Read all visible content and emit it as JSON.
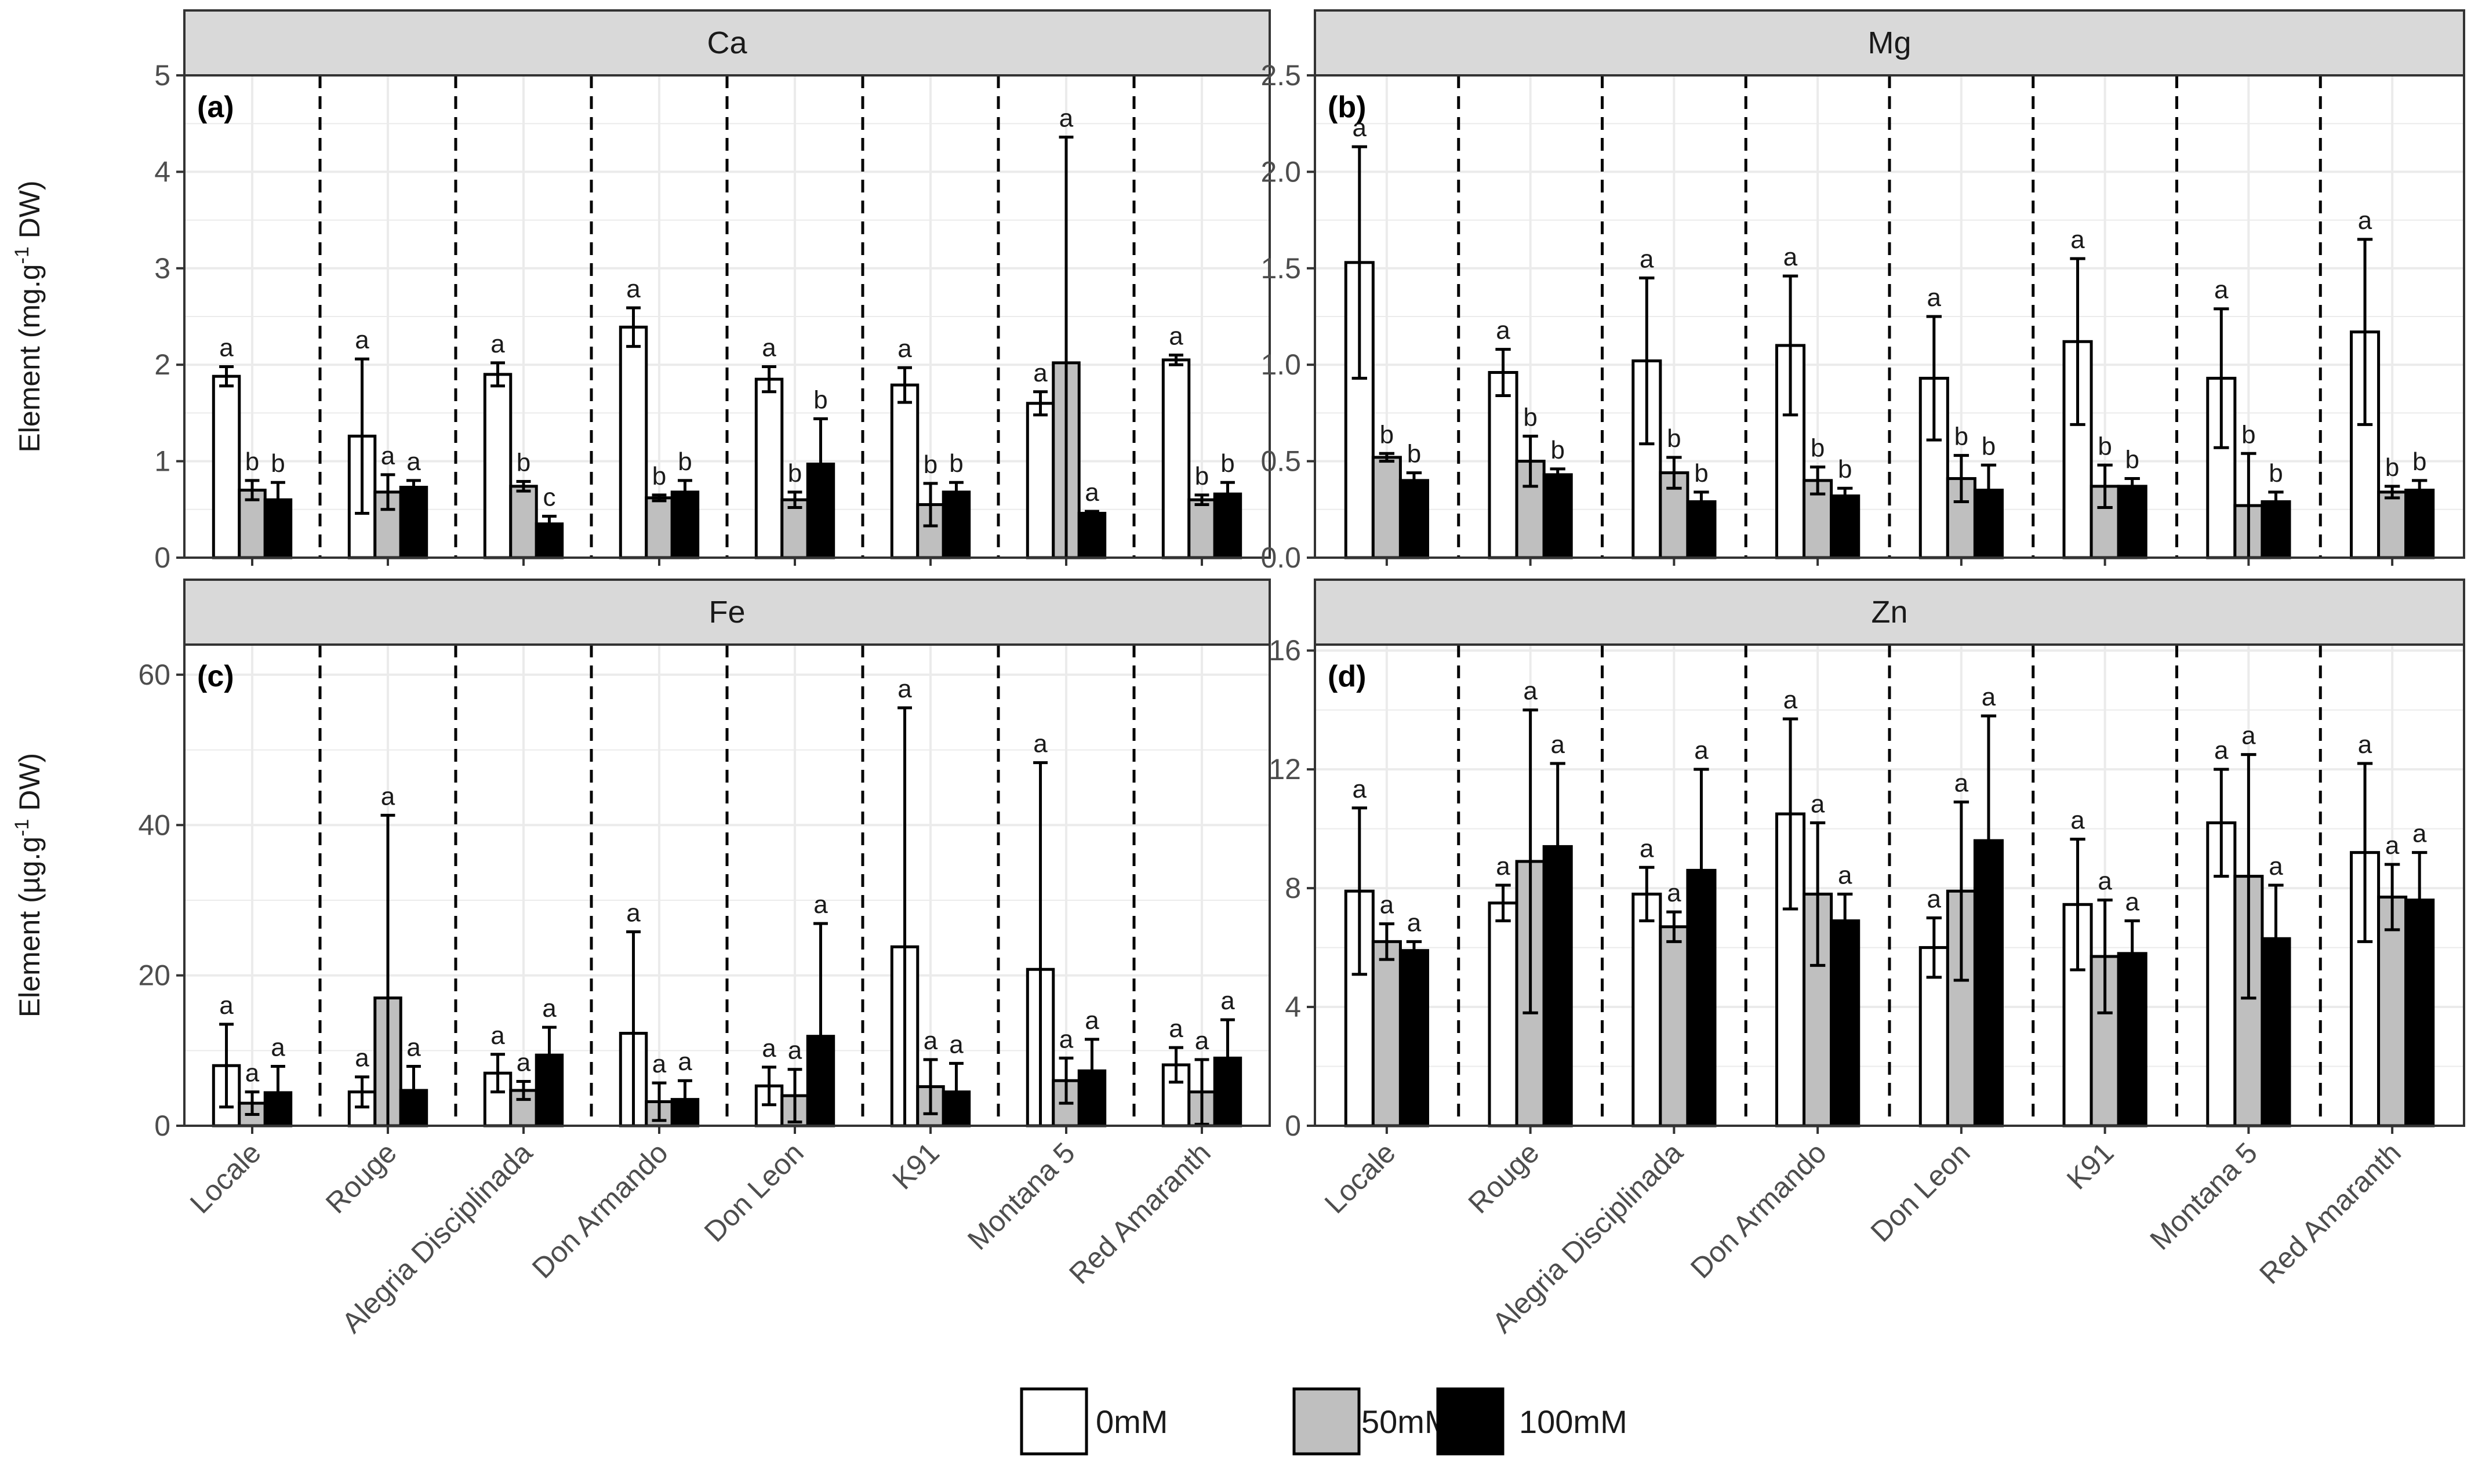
{
  "chart_data": [
    {
      "type": "bar",
      "panel_label": "(a)",
      "strip": "Ca",
      "ylabel_main": "Element (mg.g",
      "ylabel_sup": "-1",
      "ylabel_tail": " DW)",
      "ylim": [
        0,
        5
      ],
      "yticks": [
        "0",
        "1",
        "2",
        "3",
        "4",
        "5"
      ],
      "categories": [
        "Locale",
        "Rouge",
        "Alegria Disciplinada",
        "Don Armando",
        "Don Leon",
        "K91",
        "Montana 5",
        "Red Amaranth"
      ],
      "series": [
        {
          "name": "0mM",
          "values": [
            1.88,
            1.26,
            1.9,
            2.39,
            1.85,
            1.79,
            1.6,
            2.05
          ],
          "err": [
            0.1,
            0.8,
            0.12,
            0.2,
            0.13,
            0.18,
            0.12,
            0.05
          ],
          "sig": [
            "a",
            "a",
            "a",
            "a",
            "a",
            "a",
            "a",
            "a"
          ]
        },
        {
          "name": "50mM",
          "values": [
            0.7,
            0.68,
            0.74,
            0.62,
            0.6,
            0.55,
            2.02,
            0.6
          ],
          "err": [
            0.1,
            0.18,
            0.05,
            0.03,
            0.08,
            0.22,
            2.34,
            0.05
          ],
          "sig": [
            "b",
            "a",
            "b",
            "b",
            "b",
            "b",
            "a",
            "b"
          ]
        },
        {
          "name": "100mM",
          "values": [
            0.6,
            0.73,
            0.35,
            0.68,
            0.97,
            0.68,
            0.46,
            0.66
          ],
          "err": [
            0.18,
            0.07,
            0.08,
            0.12,
            0.47,
            0.1,
            0.02,
            0.12
          ],
          "sig": [
            "b",
            "a",
            "c",
            "b",
            "b",
            "b",
            "a",
            "b"
          ]
        }
      ]
    },
    {
      "type": "bar",
      "panel_label": "(b)",
      "strip": "Mg",
      "ylim": [
        0,
        2.5
      ],
      "yticks": [
        "0.0",
        "0.5",
        "1.0",
        "1.5",
        "2.0",
        "2.5"
      ],
      "categories": [
        "Locale",
        "Rouge",
        "Alegria Disciplinada",
        "Don Armando",
        "Don Leon",
        "K91",
        "Montana 5",
        "Red Amaranth"
      ],
      "series": [
        {
          "name": "0mM",
          "values": [
            1.53,
            0.96,
            1.02,
            1.1,
            0.93,
            1.12,
            0.93,
            1.17
          ],
          "err": [
            0.6,
            0.12,
            0.43,
            0.36,
            0.32,
            0.43,
            0.36,
            0.48
          ],
          "sig": [
            "a",
            "a",
            "a",
            "a",
            "a",
            "a",
            "a",
            "a"
          ]
        },
        {
          "name": "50mM",
          "values": [
            0.52,
            0.5,
            0.44,
            0.4,
            0.41,
            0.37,
            0.27,
            0.34
          ],
          "err": [
            0.02,
            0.13,
            0.08,
            0.07,
            0.12,
            0.11,
            0.27,
            0.03
          ],
          "sig": [
            "b",
            "b",
            "b",
            "b",
            "b",
            "b",
            "b",
            "b"
          ]
        },
        {
          "name": "100mM",
          "values": [
            0.4,
            0.43,
            0.29,
            0.32,
            0.35,
            0.37,
            0.29,
            0.35
          ],
          "err": [
            0.04,
            0.03,
            0.05,
            0.04,
            0.13,
            0.04,
            0.05,
            0.05
          ],
          "sig": [
            "b",
            "b",
            "b",
            "b",
            "b",
            "b",
            "b",
            "b"
          ]
        }
      ]
    },
    {
      "type": "bar",
      "panel_label": "(c)",
      "strip": "Fe",
      "ylabel_main": "Element (µg.g",
      "ylabel_sup": "-1",
      "ylabel_tail": " DW)",
      "ylim": [
        0,
        64
      ],
      "yticks": [
        "0",
        "20",
        "40",
        "60"
      ],
      "ytick_values": [
        0,
        20,
        40,
        60
      ],
      "categories": [
        "Locale",
        "Rouge",
        "Alegria Disciplinada",
        "Don Armando",
        "Don Leon",
        "K91",
        "Montana 5",
        "Red Amaranth"
      ],
      "series": [
        {
          "name": "0mM",
          "values": [
            8,
            4.5,
            7,
            12.3,
            5.3,
            23.8,
            20.8,
            8.1
          ],
          "err": [
            5.5,
            2,
            2.5,
            13.5,
            2.5,
            31.8,
            27.5,
            2.3
          ],
          "sig": [
            "a",
            "a",
            "a",
            "a",
            "a",
            "a",
            "a",
            "a"
          ]
        },
        {
          "name": "50mM",
          "values": [
            3,
            17,
            4.7,
            3.2,
            4,
            5.2,
            6,
            4.5
          ],
          "err": [
            1.5,
            24.3,
            1.2,
            2.5,
            3.5,
            3.6,
            3,
            4.3
          ],
          "sig": [
            "a",
            "a",
            "a",
            "a",
            "a",
            "a",
            "a",
            "a"
          ]
        },
        {
          "name": "100mM",
          "values": [
            4.4,
            4.7,
            9.4,
            3.5,
            11.9,
            4.5,
            7.3,
            9
          ],
          "err": [
            3.5,
            3.2,
            3.7,
            2.5,
            15,
            3.8,
            4.2,
            5.1
          ],
          "sig": [
            "a",
            "a",
            "a",
            "a",
            "a",
            "a",
            "a",
            "a"
          ]
        }
      ]
    },
    {
      "type": "bar",
      "panel_label": "(d)",
      "strip": "Zn",
      "ylim": [
        0,
        16.2
      ],
      "yticks": [
        "0",
        "4",
        "8",
        "12",
        "16"
      ],
      "ytick_values": [
        0,
        4,
        8,
        12,
        16
      ],
      "categories": [
        "Locale",
        "Rouge",
        "Alegria Disciplinada",
        "Don Armando",
        "Don Leon",
        "K91",
        "Montana 5",
        "Red Amaranth"
      ],
      "series": [
        {
          "name": "0mM",
          "values": [
            7.9,
            7.5,
            7.8,
            10.5,
            6,
            7.45,
            10.2,
            9.2
          ],
          "err": [
            2.8,
            0.6,
            0.9,
            3.2,
            1,
            2.2,
            1.8,
            3
          ],
          "sig": [
            "a",
            "a",
            "a",
            "a",
            "a",
            "a",
            "a",
            "a"
          ]
        },
        {
          "name": "50mM",
          "values": [
            6.2,
            8.9,
            6.7,
            7.8,
            7.9,
            5.7,
            8.4,
            7.7
          ],
          "err": [
            0.6,
            5.1,
            0.5,
            2.4,
            3,
            1.9,
            4.1,
            1.1
          ],
          "sig": [
            "a",
            "a",
            "a",
            "a",
            "a",
            "a",
            "a",
            "a"
          ]
        },
        {
          "name": "100mM",
          "values": [
            5.9,
            9.4,
            8.6,
            6.9,
            9.6,
            5.8,
            6.3,
            7.6
          ],
          "err": [
            0.3,
            2.8,
            3.4,
            0.9,
            4.2,
            1.1,
            1.8,
            1.6
          ],
          "sig": [
            "a",
            "a",
            "a",
            "a",
            "a",
            "a",
            "a",
            "a"
          ]
        }
      ]
    }
  ],
  "legend": {
    "entries": [
      {
        "name": "0mM",
        "color": "#ffffff"
      },
      {
        "name": "50mM",
        "color": "#bfbfbf"
      },
      {
        "name": "100mM",
        "color": "#000000"
      }
    ],
    "placement": "bottom"
  },
  "colors": {
    "s0": "#ffffff",
    "s1": "#bfbfbf",
    "s2": "#000000",
    "strip": "#d9d9d9",
    "grid": "#ebebeb"
  }
}
